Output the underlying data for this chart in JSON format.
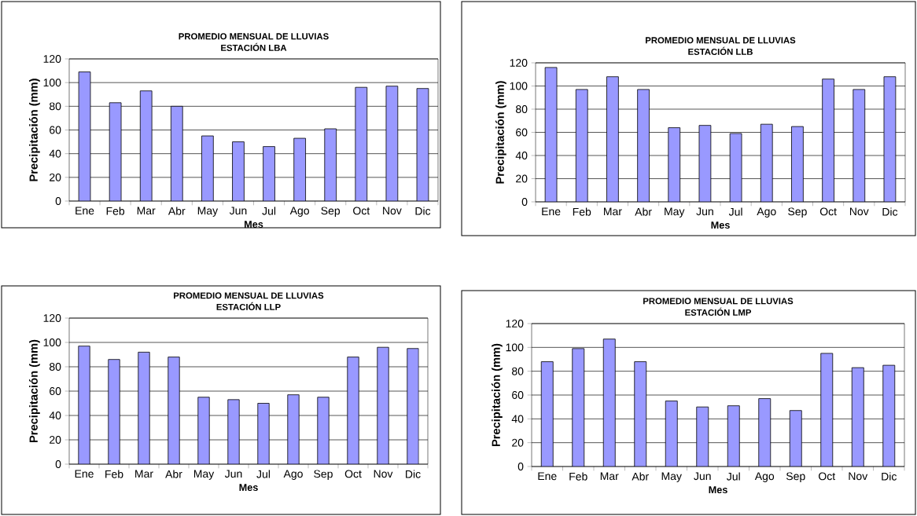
{
  "chart_data": [
    {
      "type": "bar",
      "title": "PROMEDIO MENSUAL DE LLUVIAS",
      "subtitle": "ESTACIÓN LBA",
      "xlabel": "Mes",
      "ylabel": "Precipitación (mm)",
      "categories": [
        "Ene",
        "Feb",
        "Mar",
        "Abr",
        "May",
        "Jun",
        "Jul",
        "Ago",
        "Sep",
        "Oct",
        "Nov",
        "Dic"
      ],
      "values": [
        109,
        83,
        93,
        80,
        55,
        50,
        46,
        53,
        61,
        96,
        97,
        95
      ],
      "color": "#9999ff",
      "ylim": [
        0,
        120
      ],
      "yticks": [
        0,
        20,
        40,
        60,
        80,
        100,
        120
      ],
      "grid": "y"
    },
    {
      "type": "bar",
      "title": "PROMEDIO MENSUAL DE LLUVIAS",
      "subtitle": "ESTACIÓN LLB",
      "xlabel": "Mes",
      "ylabel": "Precipitación (mm)",
      "categories": [
        "Ene",
        "Feb",
        "Mar",
        "Abr",
        "May",
        "Jun",
        "Jul",
        "Ago",
        "Sep",
        "Oct",
        "Nov",
        "Dic"
      ],
      "values": [
        116,
        97,
        108,
        97,
        64,
        66,
        59,
        67,
        65,
        106,
        97,
        108
      ],
      "color": "#9999ff",
      "ylim": [
        0,
        120
      ],
      "yticks": [
        0,
        20,
        40,
        60,
        80,
        100,
        120
      ],
      "grid": "y"
    },
    {
      "type": "bar",
      "title": "PROMEDIO MENSUAL DE LLUVIAS",
      "subtitle": "ESTACIÓN LLP",
      "xlabel": "Mes",
      "ylabel": "Precipitación (mm)",
      "categories": [
        "Ene",
        "Feb",
        "Mar",
        "Abr",
        "May",
        "Jun",
        "Jul",
        "Ago",
        "Sep",
        "Oct",
        "Nov",
        "Dic"
      ],
      "values": [
        97,
        86,
        92,
        88,
        55,
        53,
        50,
        57,
        55,
        88,
        96,
        95
      ],
      "color": "#9999ff",
      "ylim": [
        0,
        120
      ],
      "yticks": [
        0,
        20,
        40,
        60,
        80,
        100,
        120
      ],
      "grid": "y"
    },
    {
      "type": "bar",
      "title": "PROMEDIO MENSUAL DE LLUVIAS",
      "subtitle": "ESTACIÓN LMP",
      "xlabel": "Mes",
      "ylabel": "Precipitación (mm)",
      "categories": [
        "Ene",
        "Feb",
        "Mar",
        "Abr",
        "May",
        "Jun",
        "Jul",
        "Ago",
        "Sep",
        "Oct",
        "Nov",
        "Dic"
      ],
      "values": [
        88,
        99,
        107,
        88,
        55,
        50,
        51,
        57,
        47,
        95,
        83,
        85
      ],
      "color": "#9999ff",
      "ylim": [
        0,
        120
      ],
      "yticks": [
        0,
        20,
        40,
        60,
        80,
        100,
        120
      ],
      "grid": "y"
    }
  ]
}
